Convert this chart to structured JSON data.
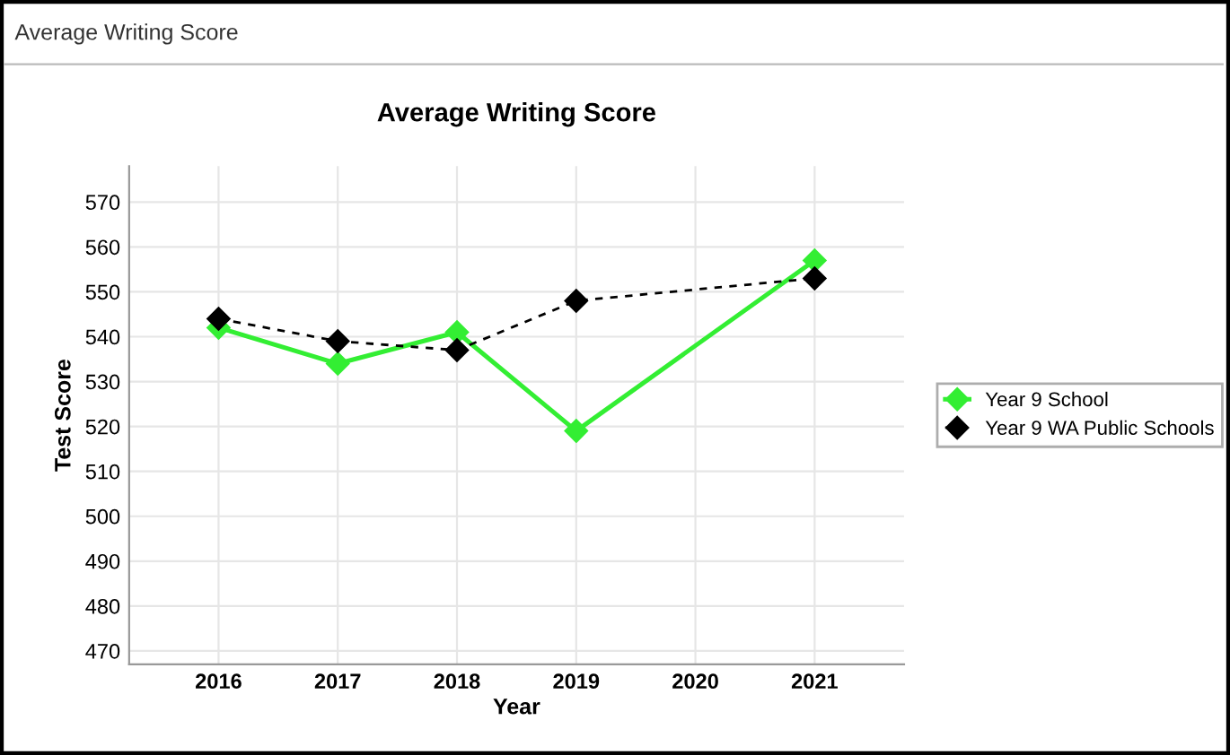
{
  "chart_data": {
    "type": "line",
    "title": "Average Writing Score",
    "subtitle": "Average Writing Score",
    "xlabel": "Year",
    "ylabel": "Test Score",
    "x": [
      2016,
      2017,
      2018,
      2019,
      2021
    ],
    "series": [
      {
        "name": "Year 9 School",
        "color": "#33ee33",
        "values": [
          542,
          534,
          541,
          519,
          557
        ],
        "line_style": "solid"
      },
      {
        "name": "Year 9 WA Public Schools",
        "color": "#000000",
        "values": [
          544,
          539,
          537,
          548,
          553
        ],
        "line_style": "dashed"
      }
    ],
    "xlim": [
      2015.25,
      2021.75
    ],
    "xticks": [
      2016,
      2017,
      2018,
      2019,
      2020,
      2021
    ],
    "ylim": [
      467,
      578
    ],
    "yticks": [
      470,
      480,
      490,
      500,
      510,
      520,
      530,
      540,
      550,
      560,
      570
    ],
    "grid": true,
    "legend": "right",
    "marker": "diamond"
  }
}
